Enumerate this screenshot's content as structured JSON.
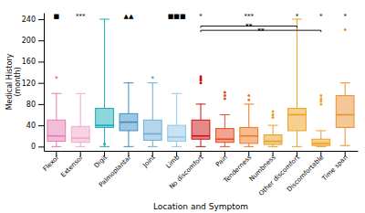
{
  "chart_data": {
    "type": "box",
    "xlabel": "Location and Symptom",
    "ylabel": "Medical History\n(month)",
    "categories": [
      "Flexor",
      "Extensor",
      "Digit",
      "Palmoplantar",
      "Joint",
      "Limb",
      "No discomfort",
      "Pain",
      "Tenderness",
      "Numbness",
      "Other discomfort",
      "Discomfortable",
      "Time span"
    ],
    "q1": [
      10,
      8,
      36,
      30,
      12,
      10,
      14,
      8,
      6,
      4,
      30,
      2,
      36
    ],
    "median": [
      20,
      16,
      40,
      46,
      24,
      18,
      20,
      14,
      20,
      10,
      60,
      6,
      60
    ],
    "q3": [
      50,
      38,
      72,
      62,
      50,
      40,
      50,
      34,
      36,
      22,
      72,
      14,
      96
    ],
    "whisker_low": [
      0,
      0,
      0,
      0,
      0,
      0,
      0,
      0,
      0,
      0,
      0,
      0,
      2
    ],
    "whisker_high": [
      100,
      100,
      240,
      120,
      120,
      100,
      80,
      60,
      80,
      40,
      240,
      30,
      120
    ],
    "fliers": [
      [
        130
      ],
      [],
      [
        5
      ],
      [],
      [
        130
      ],
      [],
      [
        120,
        125,
        128,
        132
      ],
      [
        90,
        96,
        102
      ],
      [
        88,
        96
      ],
      [
        55,
        60,
        66
      ],
      [],
      [
        80,
        86,
        90,
        96
      ],
      [
        220
      ]
    ],
    "colors": [
      "#E87BB0",
      "#F0A8C8",
      "#1AADBA",
      "#3C8DC4",
      "#6AAED6",
      "#90C6E8",
      "#CC1111",
      "#E84C20",
      "#F07820",
      "#E8A020",
      "#F0A020",
      "#F0A020",
      "#E89030"
    ],
    "annotations": [
      {
        "category": "Flexor",
        "text": "■",
        "y": 241
      },
      {
        "category": "Extensor",
        "text": "***",
        "y": 241
      },
      {
        "category": "Palmoplantar",
        "text": "▲▲",
        "y": 241
      },
      {
        "category": "Limb",
        "text": "■■■",
        "y": 241
      },
      {
        "category": "No discomfort",
        "text": "*",
        "y": 241
      },
      {
        "category": "Tenderness",
        "text": "***",
        "y": 241
      },
      {
        "category": "Other discomfort",
        "text": "*",
        "y": 241
      },
      {
        "category": "Discomfortable",
        "text": "*",
        "y": 241
      },
      {
        "category": "Time span",
        "text": "*",
        "y": 241
      }
    ],
    "brackets": [
      {
        "from": "No discomfort",
        "to": "Other discomfort",
        "y": 227,
        "text": "**"
      },
      {
        "from": "No discomfort",
        "to": "Discomfortable",
        "y": 219,
        "text": "**"
      }
    ],
    "ylim": [
      -8,
      252
    ],
    "yticks": [
      0,
      40,
      80,
      120,
      160,
      200,
      240
    ],
    "grid": false
  }
}
